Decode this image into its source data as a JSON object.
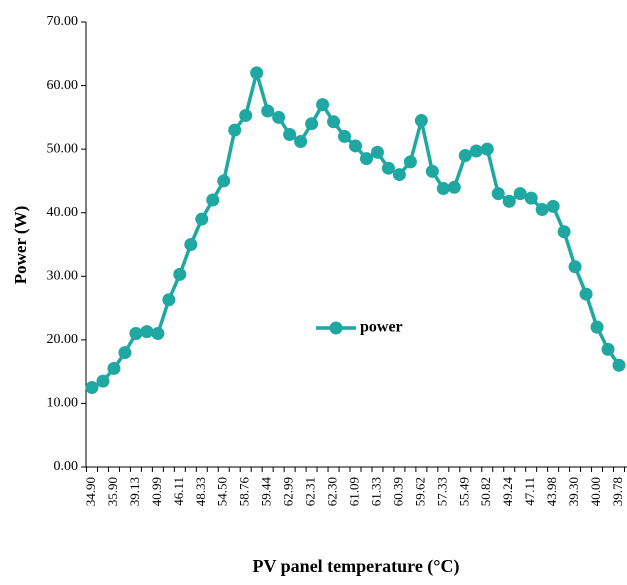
{
  "chart_data": {
    "type": "line",
    "ylabel": "Power (W)",
    "xlabel": "PV panel temperature (°C)",
    "categories": [
      "34.90",
      null,
      "35.90",
      null,
      "39.13",
      null,
      "40.99",
      null,
      "46.11",
      null,
      "48.33",
      null,
      "54.50",
      null,
      "58.76",
      null,
      "59.44",
      null,
      "62.99",
      null,
      "62.31",
      null,
      "62.30",
      null,
      "61.09",
      null,
      "61.33",
      null,
      "60.39",
      null,
      "59.62",
      null,
      "57.33",
      null,
      "55.49",
      null,
      "50.82",
      null,
      "49.24",
      null,
      "47.11",
      null,
      "43.98",
      null,
      "39.30",
      null,
      "40.00",
      null,
      "39.78"
    ],
    "series": [
      {
        "name": "power",
        "color": "#1fa8a2",
        "values": [
          12.5,
          13.5,
          15.5,
          18,
          21,
          21.3,
          21,
          26.3,
          30.3,
          35,
          39,
          42,
          45,
          53,
          55.3,
          62,
          56,
          55,
          52.3,
          51.2,
          54,
          57,
          54.3,
          52,
          50.5,
          48.5,
          49.5,
          47,
          46,
          48,
          54.5,
          46.5,
          43.8,
          44,
          49,
          49.7,
          50,
          43,
          41.8,
          43,
          42.3,
          40.5,
          41,
          37,
          31.5,
          27.2,
          22,
          18.5,
          16
        ]
      }
    ],
    "ylim": [
      0,
      70
    ],
    "yticks": [
      {
        "value": 0,
        "label": "0.00"
      },
      {
        "value": 10,
        "label": "10.00"
      },
      {
        "value": 20,
        "label": "20.00"
      },
      {
        "value": 30,
        "label": "30.00"
      },
      {
        "value": 40,
        "label": "40.00"
      },
      {
        "value": 50,
        "label": "50.00"
      },
      {
        "value": 60,
        "label": "60.00"
      },
      {
        "value": 70,
        "label": "70.00"
      }
    ],
    "legend": "center"
  }
}
